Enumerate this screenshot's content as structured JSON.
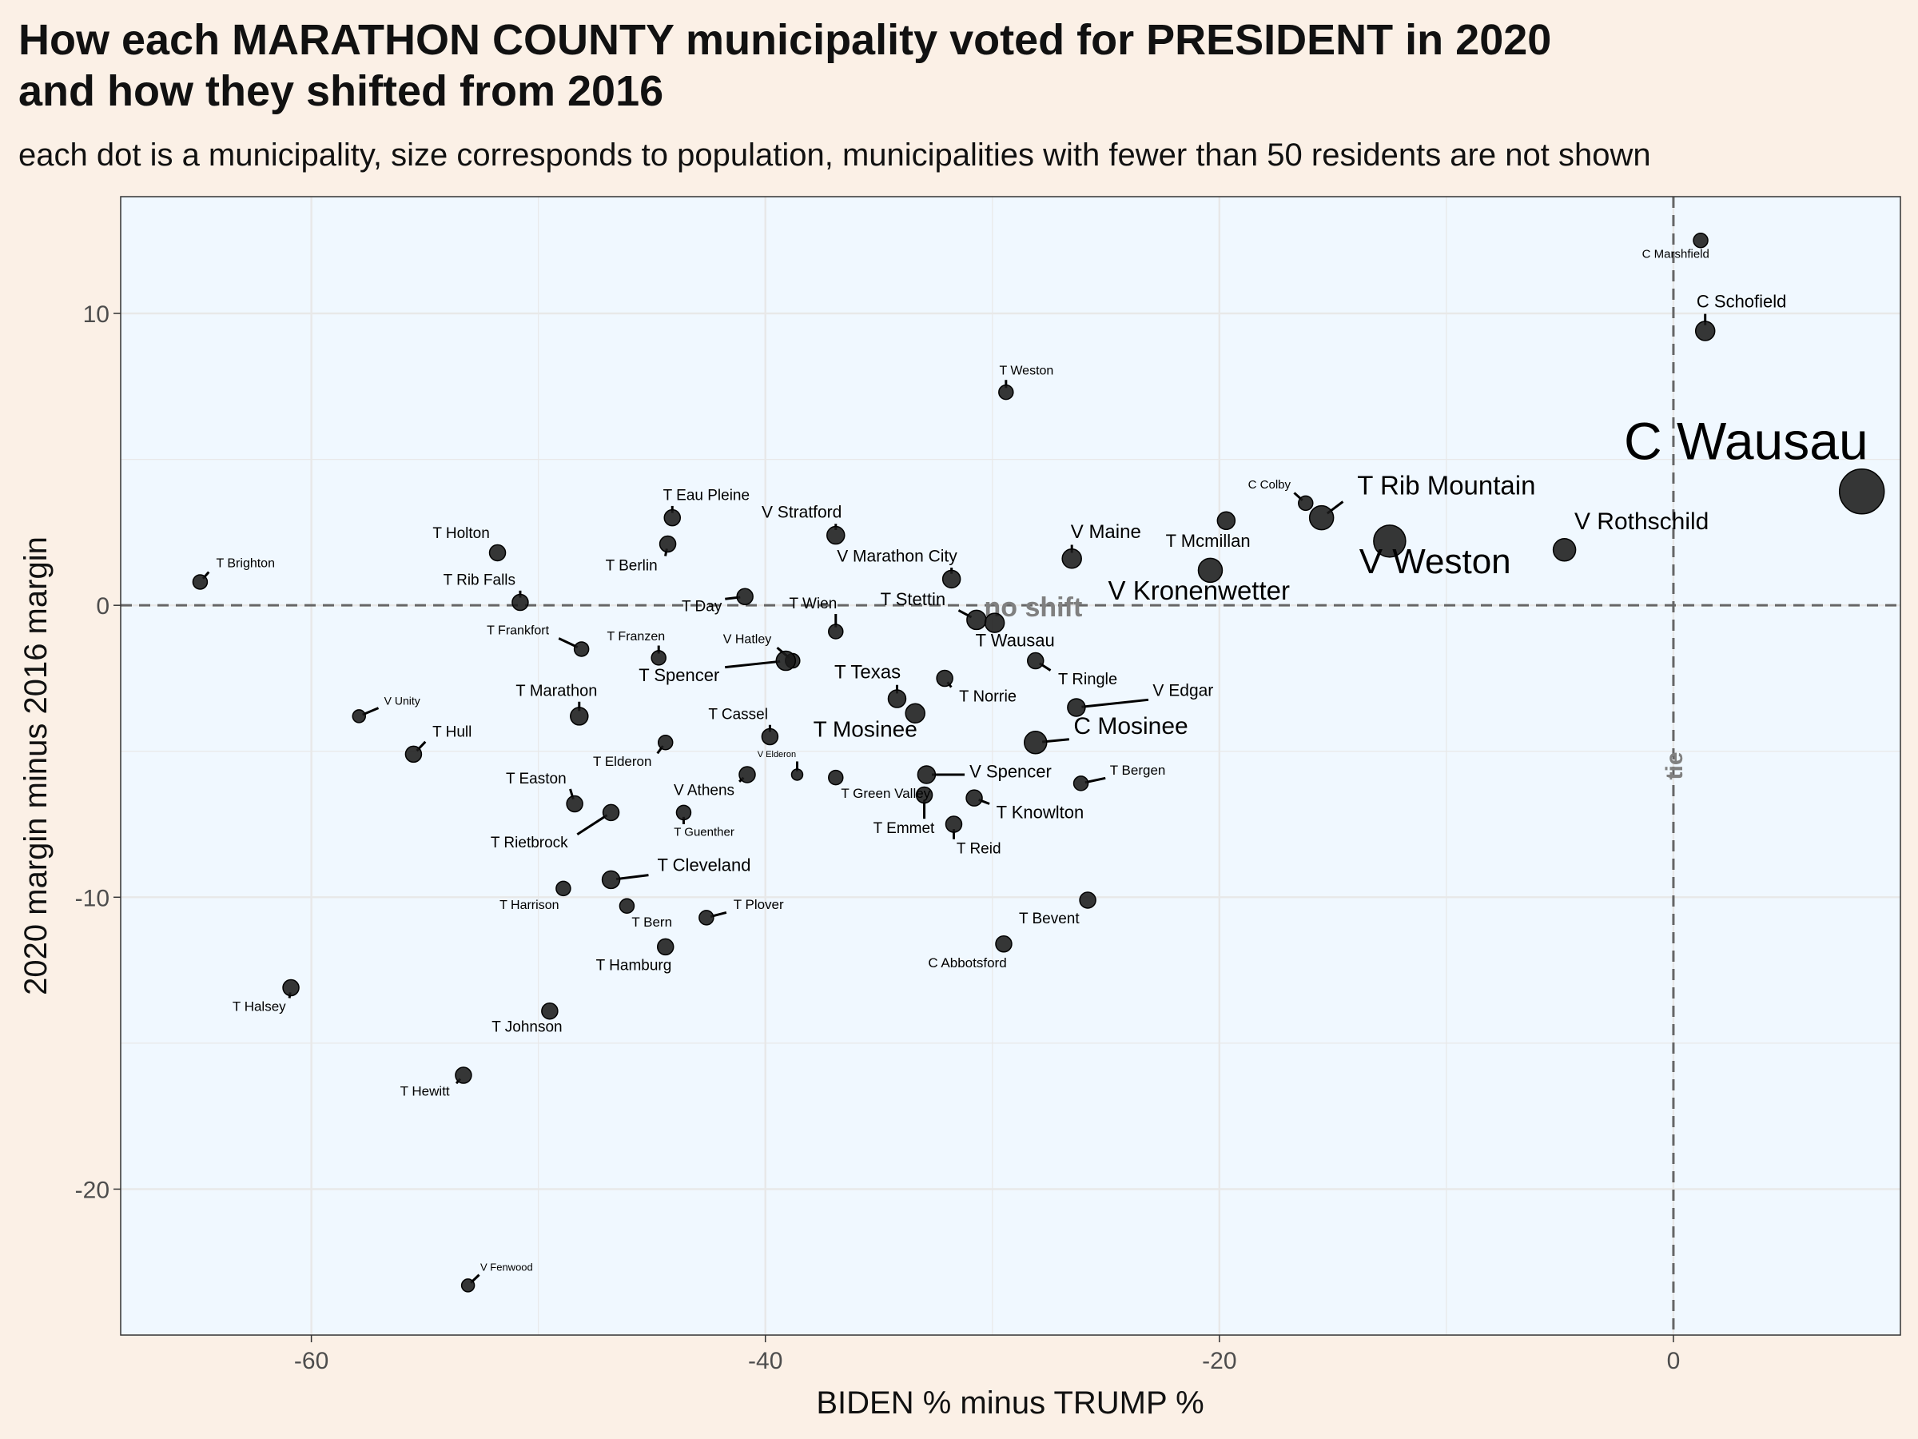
{
  "title_line1": "How each MARATHON COUNTY municipality voted for PRESIDENT in 2020",
  "title_line2": "and how they shifted from 2016",
  "subtitle": "each dot is a municipality, size corresponds to population, municipalities with fewer than 50 residents are not shown",
  "colors": {
    "background": "#fbf0e6",
    "panel": "#f0f8ff",
    "grid": "#e8e8e8",
    "dot": "#1a1a1a",
    "reference": "#666666"
  },
  "chart_data": {
    "type": "scatter",
    "xlabel": "BIDEN % minus TRUMP %",
    "ylabel": "2020 margin minus 2016 margin",
    "xlim": [
      -68.4,
      10.0
    ],
    "ylim": [
      -25.0,
      14.0
    ],
    "x_ticks": [
      -60,
      -40,
      -20,
      0
    ],
    "x_tick_labels": [
      "-60",
      "-40",
      "-20",
      "0"
    ],
    "y_ticks": [
      -20,
      -10,
      0,
      10
    ],
    "y_tick_labels": [
      "-20",
      "-10",
      "0",
      "10"
    ],
    "grid": true,
    "reference_lines": [
      {
        "orientation": "horizontal",
        "value": 0,
        "label": "no shift"
      },
      {
        "orientation": "vertical",
        "value": 0,
        "label": "tie"
      }
    ],
    "points": [
      {
        "name": "C Marshfield",
        "x": 1.2,
        "y": 12.5,
        "r": 9,
        "lx": 0.1,
        "ly": 11.9,
        "fs": 15
      },
      {
        "name": "C Schofield",
        "x": 1.4,
        "y": 9.4,
        "r": 12,
        "lx": 3.0,
        "ly": 10.2,
        "fs": 22
      },
      {
        "name": "C Wausau",
        "x": 8.3,
        "y": 3.9,
        "r": 28,
        "lx": 3.2,
        "ly": 5.0,
        "fs": 66
      },
      {
        "name": "V Rothschild",
        "x": -4.8,
        "y": 1.9,
        "r": 14,
        "lx": -1.4,
        "ly": 2.6,
        "fs": 30
      },
      {
        "name": "V Weston",
        "x": -12.5,
        "y": 2.2,
        "r": 20,
        "lx": -10.5,
        "ly": 1.1,
        "fs": 44
      },
      {
        "name": "T Rib Mountain",
        "x": -15.5,
        "y": 3.0,
        "r": 15,
        "lx": -10.0,
        "ly": 3.8,
        "fs": 33
      },
      {
        "name": "C Colby",
        "x": -16.2,
        "y": 3.5,
        "r": 9,
        "lx": -17.8,
        "ly": 4.0,
        "fs": 15
      },
      {
        "name": "T Mcmillan",
        "x": -19.7,
        "y": 2.9,
        "r": 11,
        "lx": -20.5,
        "ly": 2.0,
        "fs": 22
      },
      {
        "name": "V Kronenwetter",
        "x": -20.4,
        "y": 1.2,
        "r": 15,
        "lx": -20.9,
        "ly": 0.2,
        "fs": 33
      },
      {
        "name": "V Maine",
        "x": -26.5,
        "y": 1.6,
        "r": 12,
        "lx": -25.0,
        "ly": 2.3,
        "fs": 24
      },
      {
        "name": "V Marathon City",
        "x": -31.8,
        "y": 0.9,
        "r": 11,
        "lx": -34.2,
        "ly": 1.5,
        "fs": 21
      },
      {
        "name": "T Weston",
        "x": -29.4,
        "y": 7.3,
        "r": 9,
        "lx": -28.5,
        "ly": 7.9,
        "fs": 16
      },
      {
        "name": "T Stettin",
        "x": -30.7,
        "y": -0.5,
        "r": 12,
        "lx": -33.5,
        "ly": 0.0,
        "fs": 22
      },
      {
        "name": "T Wausau",
        "x": -29.9,
        "y": -0.6,
        "r": 12,
        "lx": -29.0,
        "ly": -1.4,
        "fs": 22
      },
      {
        "name": "T Ringle",
        "x": -28.1,
        "y": -1.9,
        "r": 10,
        "lx": -25.8,
        "ly": -2.7,
        "fs": 20
      },
      {
        "name": "V Edgar",
        "x": -26.3,
        "y": -3.5,
        "r": 11,
        "lx": -21.6,
        "ly": -3.1,
        "fs": 21
      },
      {
        "name": "C Mosinee",
        "x": -28.1,
        "y": -4.7,
        "r": 14,
        "lx": -23.9,
        "ly": -4.4,
        "fs": 30
      },
      {
        "name": "T Norrie",
        "x": -32.1,
        "y": -2.5,
        "r": 10,
        "lx": -30.2,
        "ly": -3.3,
        "fs": 20
      },
      {
        "name": "T Texas",
        "x": -34.2,
        "y": -3.2,
        "r": 11,
        "lx": -35.5,
        "ly": -2.5,
        "fs": 24
      },
      {
        "name": "T Mosinee",
        "x": -33.4,
        "y": -3.7,
        "r": 12,
        "lx": -35.6,
        "ly": -4.5,
        "fs": 28
      },
      {
        "name": "T Wien",
        "x": -36.9,
        "y": -0.9,
        "r": 9,
        "lx": -37.9,
        "ly": -0.1,
        "fs": 19
      },
      {
        "name": "V Hatley",
        "x": -38.8,
        "y": -1.9,
        "r": 9,
        "lx": -40.8,
        "ly": -1.3,
        "fs": 16
      },
      {
        "name": "T Spencer",
        "x": -39.1,
        "y": -1.9,
        "r": 12,
        "lx": -43.8,
        "ly": -2.6,
        "fs": 22
      },
      {
        "name": "T Day",
        "x": -40.9,
        "y": 0.3,
        "r": 10,
        "lx": -42.8,
        "ly": -0.2,
        "fs": 19
      },
      {
        "name": "V Stratford",
        "x": -36.9,
        "y": 2.4,
        "r": 11,
        "lx": -38.4,
        "ly": 3.0,
        "fs": 21
      },
      {
        "name": "T Eau Pleine",
        "x": -44.1,
        "y": 3.0,
        "r": 10,
        "lx": -42.6,
        "ly": 3.6,
        "fs": 19
      },
      {
        "name": "T Berlin",
        "x": -44.3,
        "y": 2.1,
        "r": 10,
        "lx": -45.9,
        "ly": 1.2,
        "fs": 19
      },
      {
        "name": "T Holton",
        "x": -51.8,
        "y": 1.8,
        "r": 10,
        "lx": -53.4,
        "ly": 2.3,
        "fs": 19
      },
      {
        "name": "T Rib Falls",
        "x": -50.8,
        "y": 0.1,
        "r": 10,
        "lx": -52.6,
        "ly": 0.7,
        "fs": 19
      },
      {
        "name": "T Brighton",
        "x": -64.9,
        "y": 0.8,
        "r": 9,
        "lx": -62.9,
        "ly": 1.3,
        "fs": 16
      },
      {
        "name": "T Frankfort",
        "x": -48.1,
        "y": -1.5,
        "r": 9,
        "lx": -50.9,
        "ly": -1.0,
        "fs": 16
      },
      {
        "name": "T Franzen",
        "x": -44.7,
        "y": -1.8,
        "r": 9,
        "lx": -45.7,
        "ly": -1.2,
        "fs": 16
      },
      {
        "name": "T Marathon",
        "x": -48.2,
        "y": -3.8,
        "r": 11,
        "lx": -49.2,
        "ly": -3.1,
        "fs": 20
      },
      {
        "name": "V Unity",
        "x": -57.9,
        "y": -3.8,
        "r": 8,
        "lx": -56.0,
        "ly": -3.4,
        "fs": 14
      },
      {
        "name": "T Hull",
        "x": -55.5,
        "y": -5.1,
        "r": 10,
        "lx": -53.8,
        "ly": -4.5,
        "fs": 19
      },
      {
        "name": "T Cassel",
        "x": -39.8,
        "y": -4.5,
        "r": 10,
        "lx": -41.2,
        "ly": -3.9,
        "fs": 19
      },
      {
        "name": "T Elderon",
        "x": -44.4,
        "y": -4.7,
        "r": 9,
        "lx": -46.3,
        "ly": -5.5,
        "fs": 17
      },
      {
        "name": "V Elderon",
        "x": -38.6,
        "y": -5.8,
        "r": 7,
        "lx": -39.5,
        "ly": -5.2,
        "fs": 11
      },
      {
        "name": "V Athens",
        "x": -40.8,
        "y": -5.8,
        "r": 10,
        "lx": -42.7,
        "ly": -6.5,
        "fs": 19
      },
      {
        "name": "T Green Valley",
        "x": -36.9,
        "y": -5.9,
        "r": 9,
        "lx": -34.7,
        "ly": -6.6,
        "fs": 17
      },
      {
        "name": "V Spencer",
        "x": -32.9,
        "y": -5.8,
        "r": 11,
        "lx": -29.2,
        "ly": -5.9,
        "fs": 22
      },
      {
        "name": "T Emmet",
        "x": -33.0,
        "y": -6.5,
        "r": 10,
        "lx": -33.9,
        "ly": -7.8,
        "fs": 19
      },
      {
        "name": "T Knowlton",
        "x": -30.8,
        "y": -6.6,
        "r": 10,
        "lx": -27.9,
        "ly": -7.3,
        "fs": 22
      },
      {
        "name": "T Reid",
        "x": -31.7,
        "y": -7.5,
        "r": 10,
        "lx": -30.6,
        "ly": -8.5,
        "fs": 19
      },
      {
        "name": "T Bergen",
        "x": -26.1,
        "y": -6.1,
        "r": 9,
        "lx": -23.6,
        "ly": -5.8,
        "fs": 17
      },
      {
        "name": "T Easton",
        "x": -48.4,
        "y": -6.8,
        "r": 10,
        "lx": -50.1,
        "ly": -6.1,
        "fs": 19
      },
      {
        "name": "T Rietbrock",
        "x": -46.8,
        "y": -7.1,
        "r": 10,
        "lx": -50.4,
        "ly": -8.3,
        "fs": 19
      },
      {
        "name": "T Guenther",
        "x": -43.6,
        "y": -7.1,
        "r": 9,
        "lx": -42.7,
        "ly": -7.9,
        "fs": 15
      },
      {
        "name": "T Cleveland",
        "x": -46.8,
        "y": -9.4,
        "r": 11,
        "lx": -42.7,
        "ly": -9.1,
        "fs": 22
      },
      {
        "name": "T Harrison",
        "x": -48.9,
        "y": -9.7,
        "r": 9,
        "lx": -50.4,
        "ly": -10.4,
        "fs": 16
      },
      {
        "name": "T Bern",
        "x": -46.1,
        "y": -10.3,
        "r": 9,
        "lx": -45.0,
        "ly": -11.0,
        "fs": 17
      },
      {
        "name": "T Plover",
        "x": -42.6,
        "y": -10.7,
        "r": 9,
        "lx": -40.3,
        "ly": -10.4,
        "fs": 17
      },
      {
        "name": "T Hamburg",
        "x": -44.4,
        "y": -11.7,
        "r": 10,
        "lx": -45.8,
        "ly": -12.5,
        "fs": 19
      },
      {
        "name": "T Bevent",
        "x": -25.8,
        "y": -10.1,
        "r": 10,
        "lx": -27.5,
        "ly": -10.9,
        "fs": 19
      },
      {
        "name": "C Abbotsford",
        "x": -29.5,
        "y": -11.6,
        "r": 10,
        "lx": -31.1,
        "ly": -12.4,
        "fs": 17
      },
      {
        "name": "T Halsey",
        "x": -60.9,
        "y": -13.1,
        "r": 10,
        "lx": -62.3,
        "ly": -13.9,
        "fs": 17
      },
      {
        "name": "T Johnson",
        "x": -49.5,
        "y": -13.9,
        "r": 10,
        "lx": -50.5,
        "ly": -14.6,
        "fs": 19
      },
      {
        "name": "T Hewitt",
        "x": -53.3,
        "y": -16.1,
        "r": 10,
        "lx": -55.0,
        "ly": -16.8,
        "fs": 17
      },
      {
        "name": "V Fenwood",
        "x": -53.1,
        "y": -23.3,
        "r": 8,
        "lx": -51.4,
        "ly": -22.8,
        "fs": 13
      }
    ]
  }
}
